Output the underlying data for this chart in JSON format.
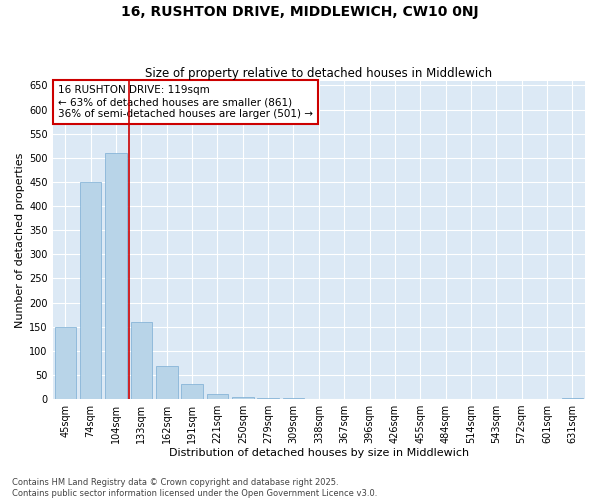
{
  "title": "16, RUSHTON DRIVE, MIDDLEWICH, CW10 0NJ",
  "subtitle": "Size of property relative to detached houses in Middlewich",
  "xlabel": "Distribution of detached houses by size in Middlewich",
  "ylabel": "Number of detached properties",
  "categories": [
    "45sqm",
    "74sqm",
    "104sqm",
    "133sqm",
    "162sqm",
    "191sqm",
    "221sqm",
    "250sqm",
    "279sqm",
    "309sqm",
    "338sqm",
    "367sqm",
    "396sqm",
    "426sqm",
    "455sqm",
    "484sqm",
    "514sqm",
    "543sqm",
    "572sqm",
    "601sqm",
    "631sqm"
  ],
  "values": [
    150,
    450,
    510,
    160,
    68,
    32,
    10,
    5,
    3,
    1,
    0,
    0,
    0,
    0,
    0,
    0,
    0,
    0,
    0,
    0,
    3
  ],
  "bar_color": "#b8d4e8",
  "bar_edgecolor": "#7aadd4",
  "vline_x_index": 2,
  "vline_color": "#cc0000",
  "annotation_text": "16 RUSHTON DRIVE: 119sqm\n← 63% of detached houses are smaller (861)\n36% of semi-detached houses are larger (501) →",
  "annotation_box_facecolor": "#ffffff",
  "annotation_box_edgecolor": "#cc0000",
  "ylim": [
    0,
    660
  ],
  "yticks": [
    0,
    50,
    100,
    150,
    200,
    250,
    300,
    350,
    400,
    450,
    500,
    550,
    600,
    650
  ],
  "fig_background": "#ffffff",
  "plot_background": "#dce9f5",
  "grid_color": "#ffffff",
  "footer": "Contains HM Land Registry data © Crown copyright and database right 2025.\nContains public sector information licensed under the Open Government Licence v3.0.",
  "title_fontsize": 10,
  "subtitle_fontsize": 8.5,
  "xlabel_fontsize": 8,
  "ylabel_fontsize": 8,
  "tick_fontsize": 7,
  "annotation_fontsize": 7.5,
  "footer_fontsize": 6
}
